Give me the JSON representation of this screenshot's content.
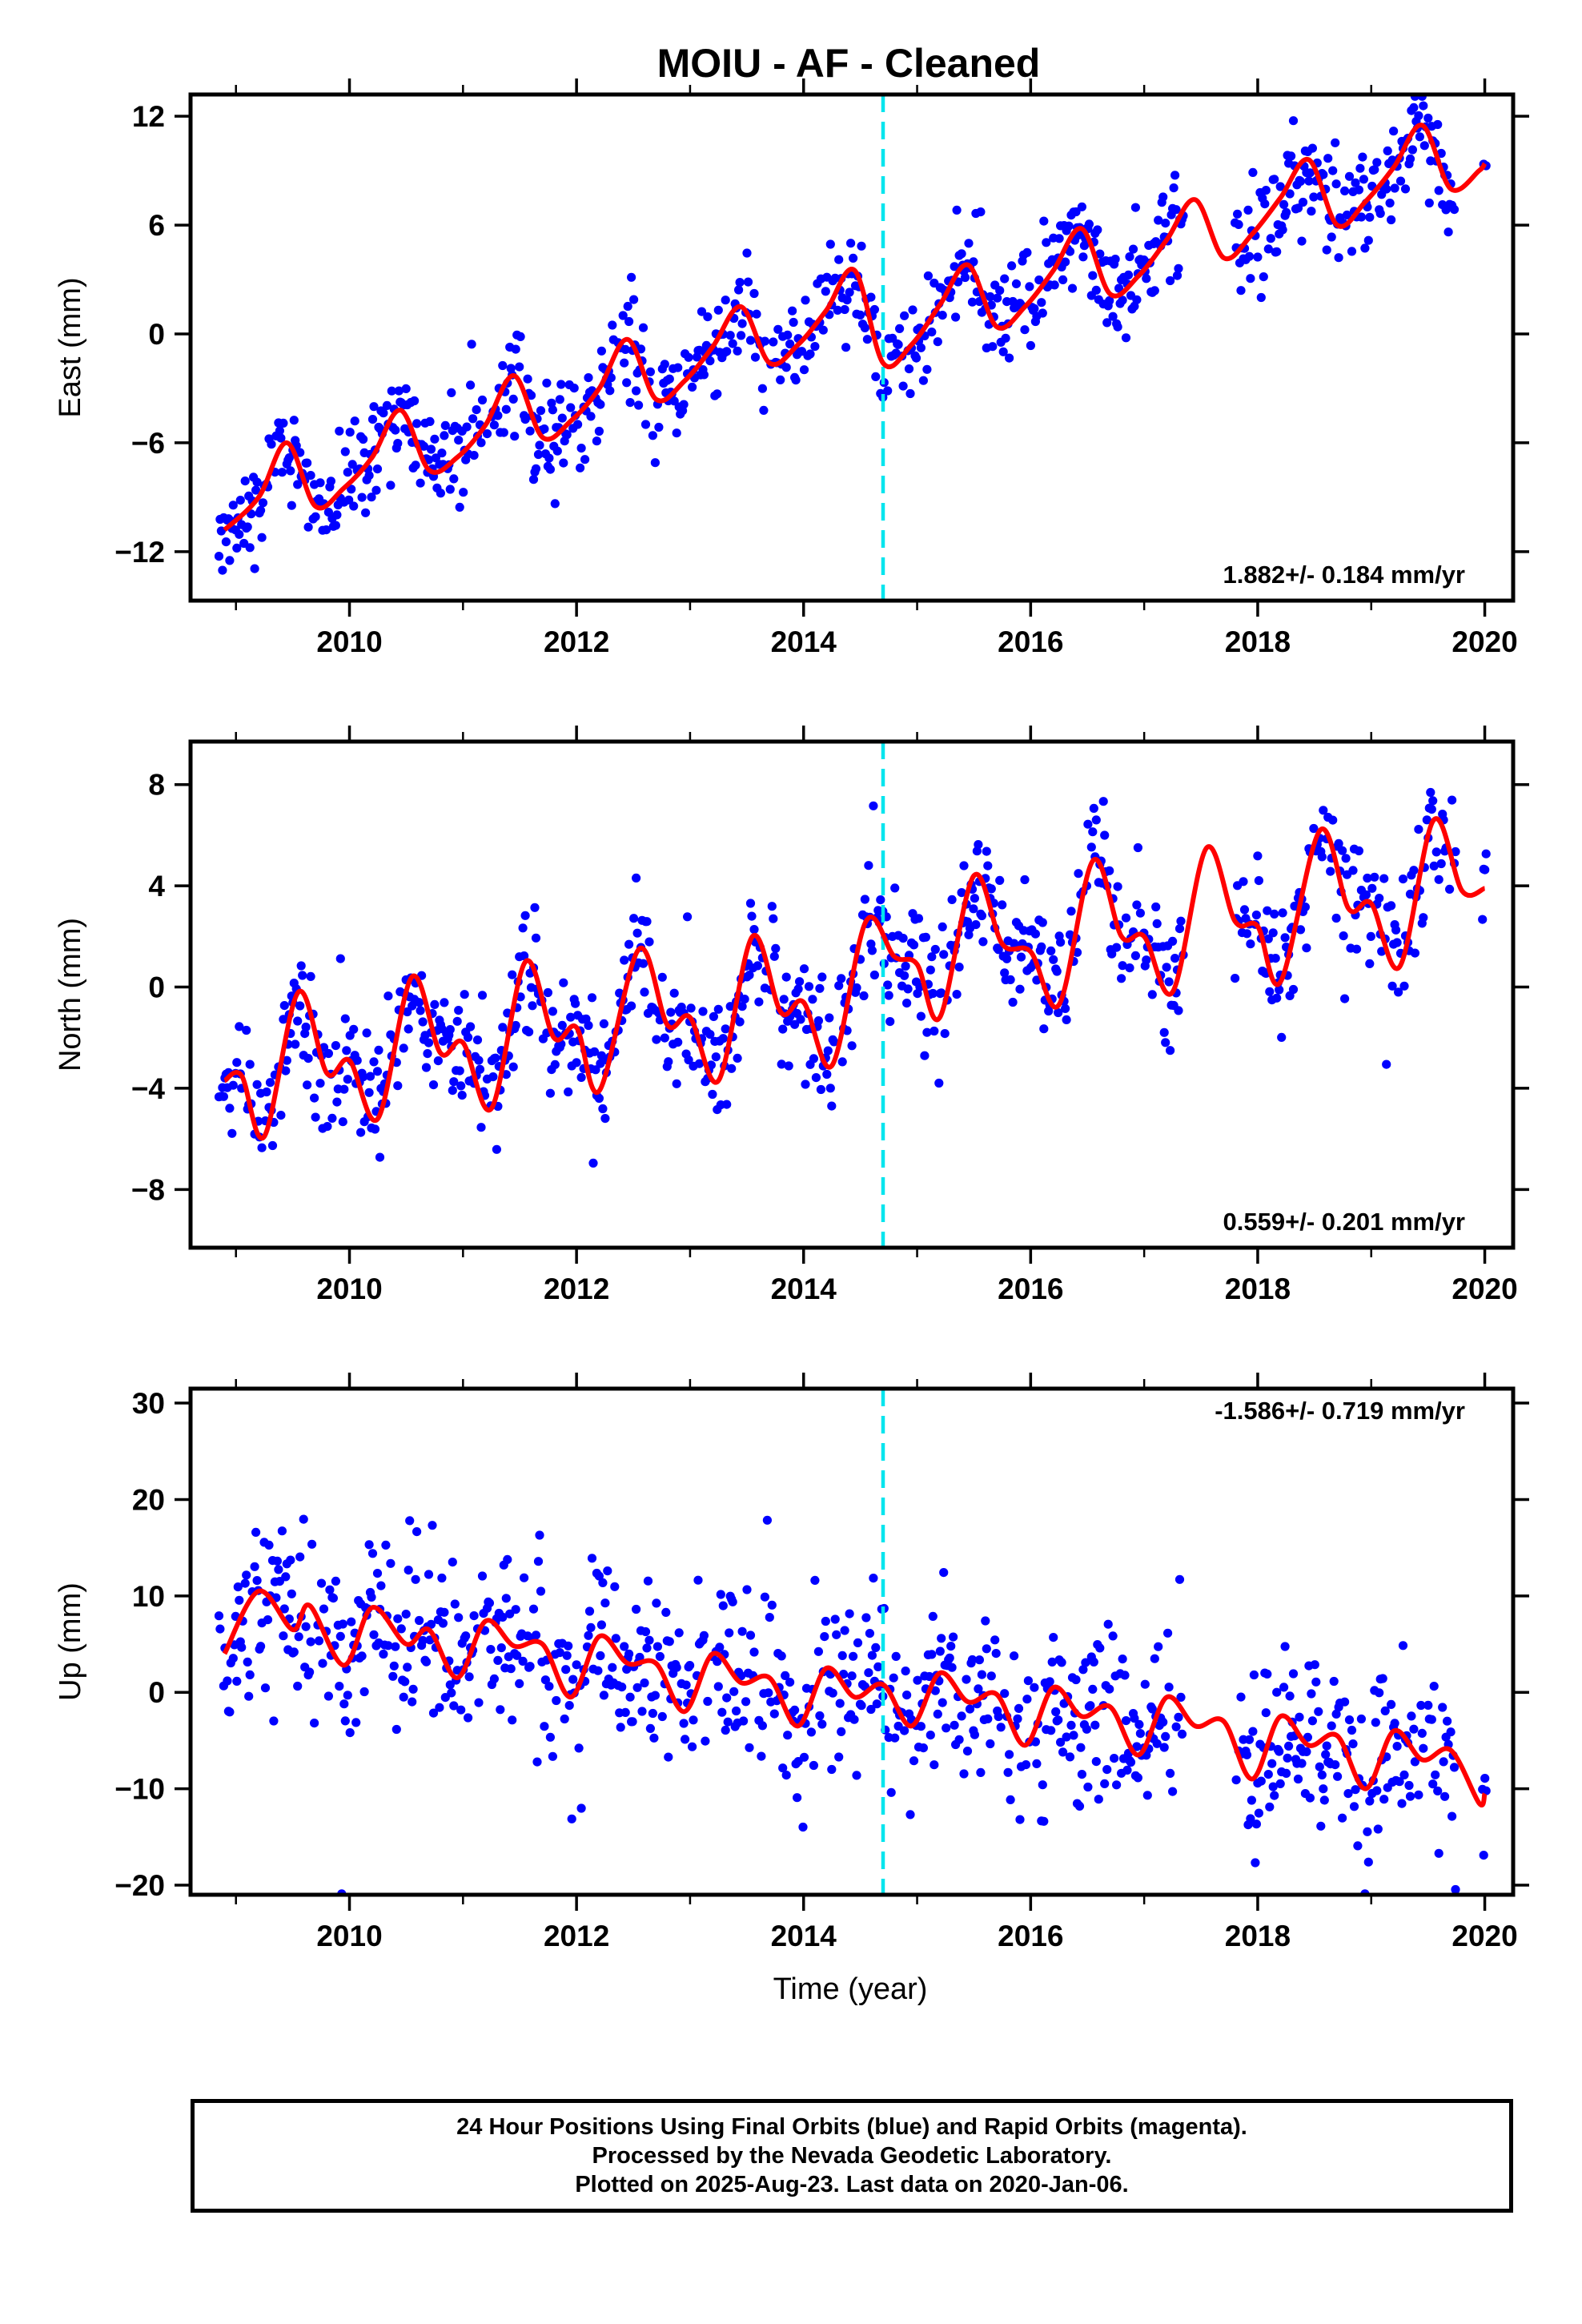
{
  "title": "MOIU  - AF - Cleaned",
  "xlabel": "Time (year)",
  "caption": [
    "24 Hour Positions Using Final Orbits (blue) and Rapid Orbits (magenta).",
    "Processed by the Nevada Geodetic Laboratory.",
    "Plotted on 2025-Aug-23. Last data on 2020-Jan-06."
  ],
  "colors": {
    "points": "#0000ff",
    "fit": "#ff0000",
    "marker": "#00e5ee",
    "frame": "#000000"
  },
  "chart_data": [
    {
      "type": "scatter",
      "component": "east",
      "ylabel": "East (mm)",
      "rate_label": "1.882+/- 0.184 mm/yr",
      "xlim": [
        2008.6,
        2020.25
      ],
      "ylim": [
        -14.7,
        13.2
      ],
      "xticks": [
        2010,
        2012,
        2014,
        2016,
        2018,
        2020
      ],
      "yticks": [
        -12,
        -6,
        0,
        6,
        12
      ],
      "rate": 1.882,
      "offset": -0.2,
      "amp": 2.8,
      "phase": 0.35,
      "scatter": 1.4,
      "marker_x": 2014.7,
      "fit": {
        "name": "",
        "x": [
          2008.9,
          2009.2,
          2009.45,
          2009.7,
          2009.95,
          2010.2,
          2010.45,
          2010.7,
          2010.95,
          2011.2,
          2011.45,
          2011.7,
          2011.95,
          2012.2,
          2012.45,
          2012.7,
          2012.95,
          2013.2,
          2013.45,
          2013.7,
          2013.95,
          2014.2,
          2014.45,
          2014.7,
          2014.95,
          2015.2,
          2015.45,
          2015.7,
          2015.95,
          2016.2,
          2016.45,
          2016.7,
          2016.95,
          2017.2,
          2017.45,
          2017.7,
          2017.95,
          2018.2,
          2018.45,
          2018.7,
          2018.95,
          2019.2,
          2019.45,
          2019.7,
          2019.95,
          2020.0
        ],
        "y": [
          -10.8,
          -9.0,
          -6.0,
          -9.5,
          -8.5,
          -6.8,
          -4.2,
          -7.5,
          -6.8,
          -5.0,
          -2.3,
          -5.7,
          -4.8,
          -3.0,
          -0.3,
          -3.6,
          -2.6,
          -0.7,
          1.5,
          -1.6,
          -0.6,
          1.3,
          3.5,
          -1.6,
          -0.6,
          1.6,
          3.8,
          0.4,
          1.5,
          3.5,
          5.8,
          2.2,
          3.2,
          5.2,
          7.4,
          4.2,
          5.5,
          7.5,
          9.6,
          6.0,
          7.3,
          9.2,
          11.5,
          8.0,
          9.0,
          9.4
        ]
      },
      "data_ranges": [
        [
          2008.85,
          2017.35
        ],
        [
          2017.8,
          2019.75
        ],
        [
          2019.98,
          2020.02
        ]
      ]
    },
    {
      "type": "scatter",
      "component": "north",
      "ylabel": "North (mm)",
      "rate_label": "0.559+/- 0.201 mm/yr",
      "xlim": [
        2008.6,
        2020.25
      ],
      "ylim": [
        -10.3,
        9.7
      ],
      "xticks": [
        2010,
        2012,
        2014,
        2016,
        2018,
        2020
      ],
      "yticks": [
        -8,
        -4,
        0,
        4,
        8
      ],
      "rate": 0.559,
      "offset": 0.5,
      "amp": 2.4,
      "phase": 0.55,
      "scatter": 1.2,
      "marker_x": 2014.7,
      "fit": {
        "name": "",
        "x": [
          2008.9,
          2009.05,
          2009.25,
          2009.55,
          2009.8,
          2010.0,
          2010.25,
          2010.55,
          2010.8,
          2011.0,
          2011.25,
          2011.55,
          2011.8,
          2012.0,
          2012.2,
          2012.55,
          2012.8,
          2013.0,
          2013.25,
          2013.55,
          2013.8,
          2014.0,
          2014.25,
          2014.55,
          2014.8,
          2015.0,
          2015.2,
          2015.5,
          2015.75,
          2016.0,
          2016.25,
          2016.55,
          2016.8,
          2017.0,
          2017.25,
          2017.55,
          2017.8,
          2018.0,
          2018.2,
          2018.55,
          2018.8,
          2019.0,
          2019.25,
          2019.55,
          2019.8,
          2020.0
        ],
        "y": [
          -3.7,
          -3.5,
          -5.9,
          -0.2,
          -3.4,
          -2.9,
          -5.2,
          0.4,
          -2.6,
          -2.2,
          -4.8,
          1.0,
          -2.0,
          -1.6,
          -4.1,
          1.5,
          -1.5,
          -1.2,
          -3.7,
          2.0,
          -1.0,
          -0.6,
          -3.1,
          2.6,
          1.2,
          0.9,
          -1.2,
          4.4,
          1.7,
          1.4,
          -0.7,
          5.0,
          2.0,
          2.0,
          -0.2,
          5.5,
          2.6,
          2.4,
          0.2,
          6.2,
          3.1,
          3.3,
          0.8,
          6.6,
          3.8,
          3.9
        ]
      },
      "data_ranges": [
        [
          2008.85,
          2017.35
        ],
        [
          2017.8,
          2019.75
        ],
        [
          2019.98,
          2020.02
        ]
      ]
    },
    {
      "type": "scatter",
      "component": "up",
      "ylabel": "Up (mm)",
      "rate_label": "-1.586+/- 0.719 mm/yr",
      "xlim": [
        2008.6,
        2020.25
      ],
      "ylim": [
        -21,
        31.5
      ],
      "xticks": [
        2010,
        2012,
        2014,
        2016,
        2018,
        2020
      ],
      "yticks": [
        -20,
        -10,
        0,
        10,
        20,
        30
      ],
      "rate": -1.586,
      "offset": -0.3,
      "amp": 3.8,
      "phase": 0.1,
      "scatter": 4.6,
      "marker_x": 2014.7,
      "fit": {
        "name": "",
        "x": [
          2008.9,
          2009.2,
          2009.5,
          2009.65,
          2009.95,
          2010.2,
          2010.5,
          2010.7,
          2010.95,
          2011.2,
          2011.45,
          2011.7,
          2011.95,
          2012.2,
          2012.45,
          2012.7,
          2012.95,
          2013.2,
          2013.45,
          2013.7,
          2013.95,
          2014.2,
          2014.45,
          2014.7,
          2014.95,
          2015.2,
          2015.45,
          2015.7,
          2015.95,
          2016.2,
          2016.45,
          2016.7,
          2016.95,
          2017.2,
          2017.45,
          2017.7,
          2017.95,
          2018.2,
          2018.45,
          2018.7,
          2018.95,
          2019.2,
          2019.45,
          2019.7,
          2019.95,
          2020.0
        ],
        "y": [
          4.0,
          10.5,
          6.5,
          9.0,
          2.8,
          8.8,
          5.0,
          6.5,
          1.5,
          7.4,
          4.8,
          5.0,
          -0.5,
          5.8,
          3.0,
          3.0,
          -2.0,
          4.0,
          1.0,
          1.5,
          -3.5,
          2.5,
          -0.5,
          0.8,
          -3.5,
          2.0,
          -1.0,
          -0.2,
          -5.5,
          0.5,
          -2.5,
          -1.5,
          -6.5,
          -0.5,
          -3.5,
          -3.0,
          -9.0,
          -2.5,
          -5.5,
          -4.5,
          -10.0,
          -4.0,
          -7.0,
          -6.0,
          -11.5,
          -10.5
        ]
      },
      "data_ranges": [
        [
          2008.85,
          2017.35
        ],
        [
          2017.8,
          2019.75
        ],
        [
          2019.98,
          2020.02
        ]
      ]
    }
  ]
}
